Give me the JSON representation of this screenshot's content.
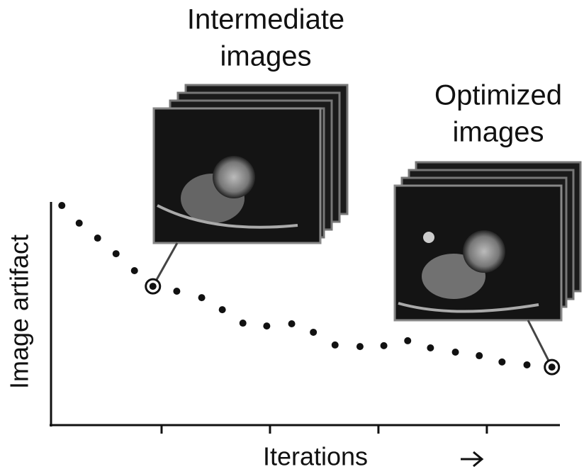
{
  "chart_data": {
    "type": "scatter",
    "x_label": "Iterations",
    "y_label": "Image artifact",
    "x": [
      0.08,
      0.24,
      0.41,
      0.58,
      0.75,
      0.92,
      1.14,
      1.37,
      1.56,
      1.75,
      1.97,
      2.2,
      2.4,
      2.6,
      2.83,
      3.05,
      3.27,
      3.48,
      3.71,
      3.93,
      4.14,
      4.37,
      4.6
    ],
    "values": [
      9.84,
      9.05,
      8.38,
      7.68,
      6.92,
      6.22,
      6.0,
      5.71,
      5.17,
      4.57,
      4.44,
      4.54,
      4.16,
      3.59,
      3.52,
      3.56,
      3.78,
      3.46,
      3.27,
      3.11,
      2.83,
      2.7,
      2.6
    ],
    "color": "#111111",
    "xlim": [
      0,
      4.7
    ],
    "xticks": [
      1,
      2,
      3,
      4
    ],
    "ylim": [
      0,
      10
    ],
    "annotations": [
      {
        "lines": [
          "Intermediate",
          "images"
        ],
        "point": 5
      },
      {
        "lines": [
          "Optimized",
          "images"
        ],
        "point": 22
      }
    ]
  }
}
